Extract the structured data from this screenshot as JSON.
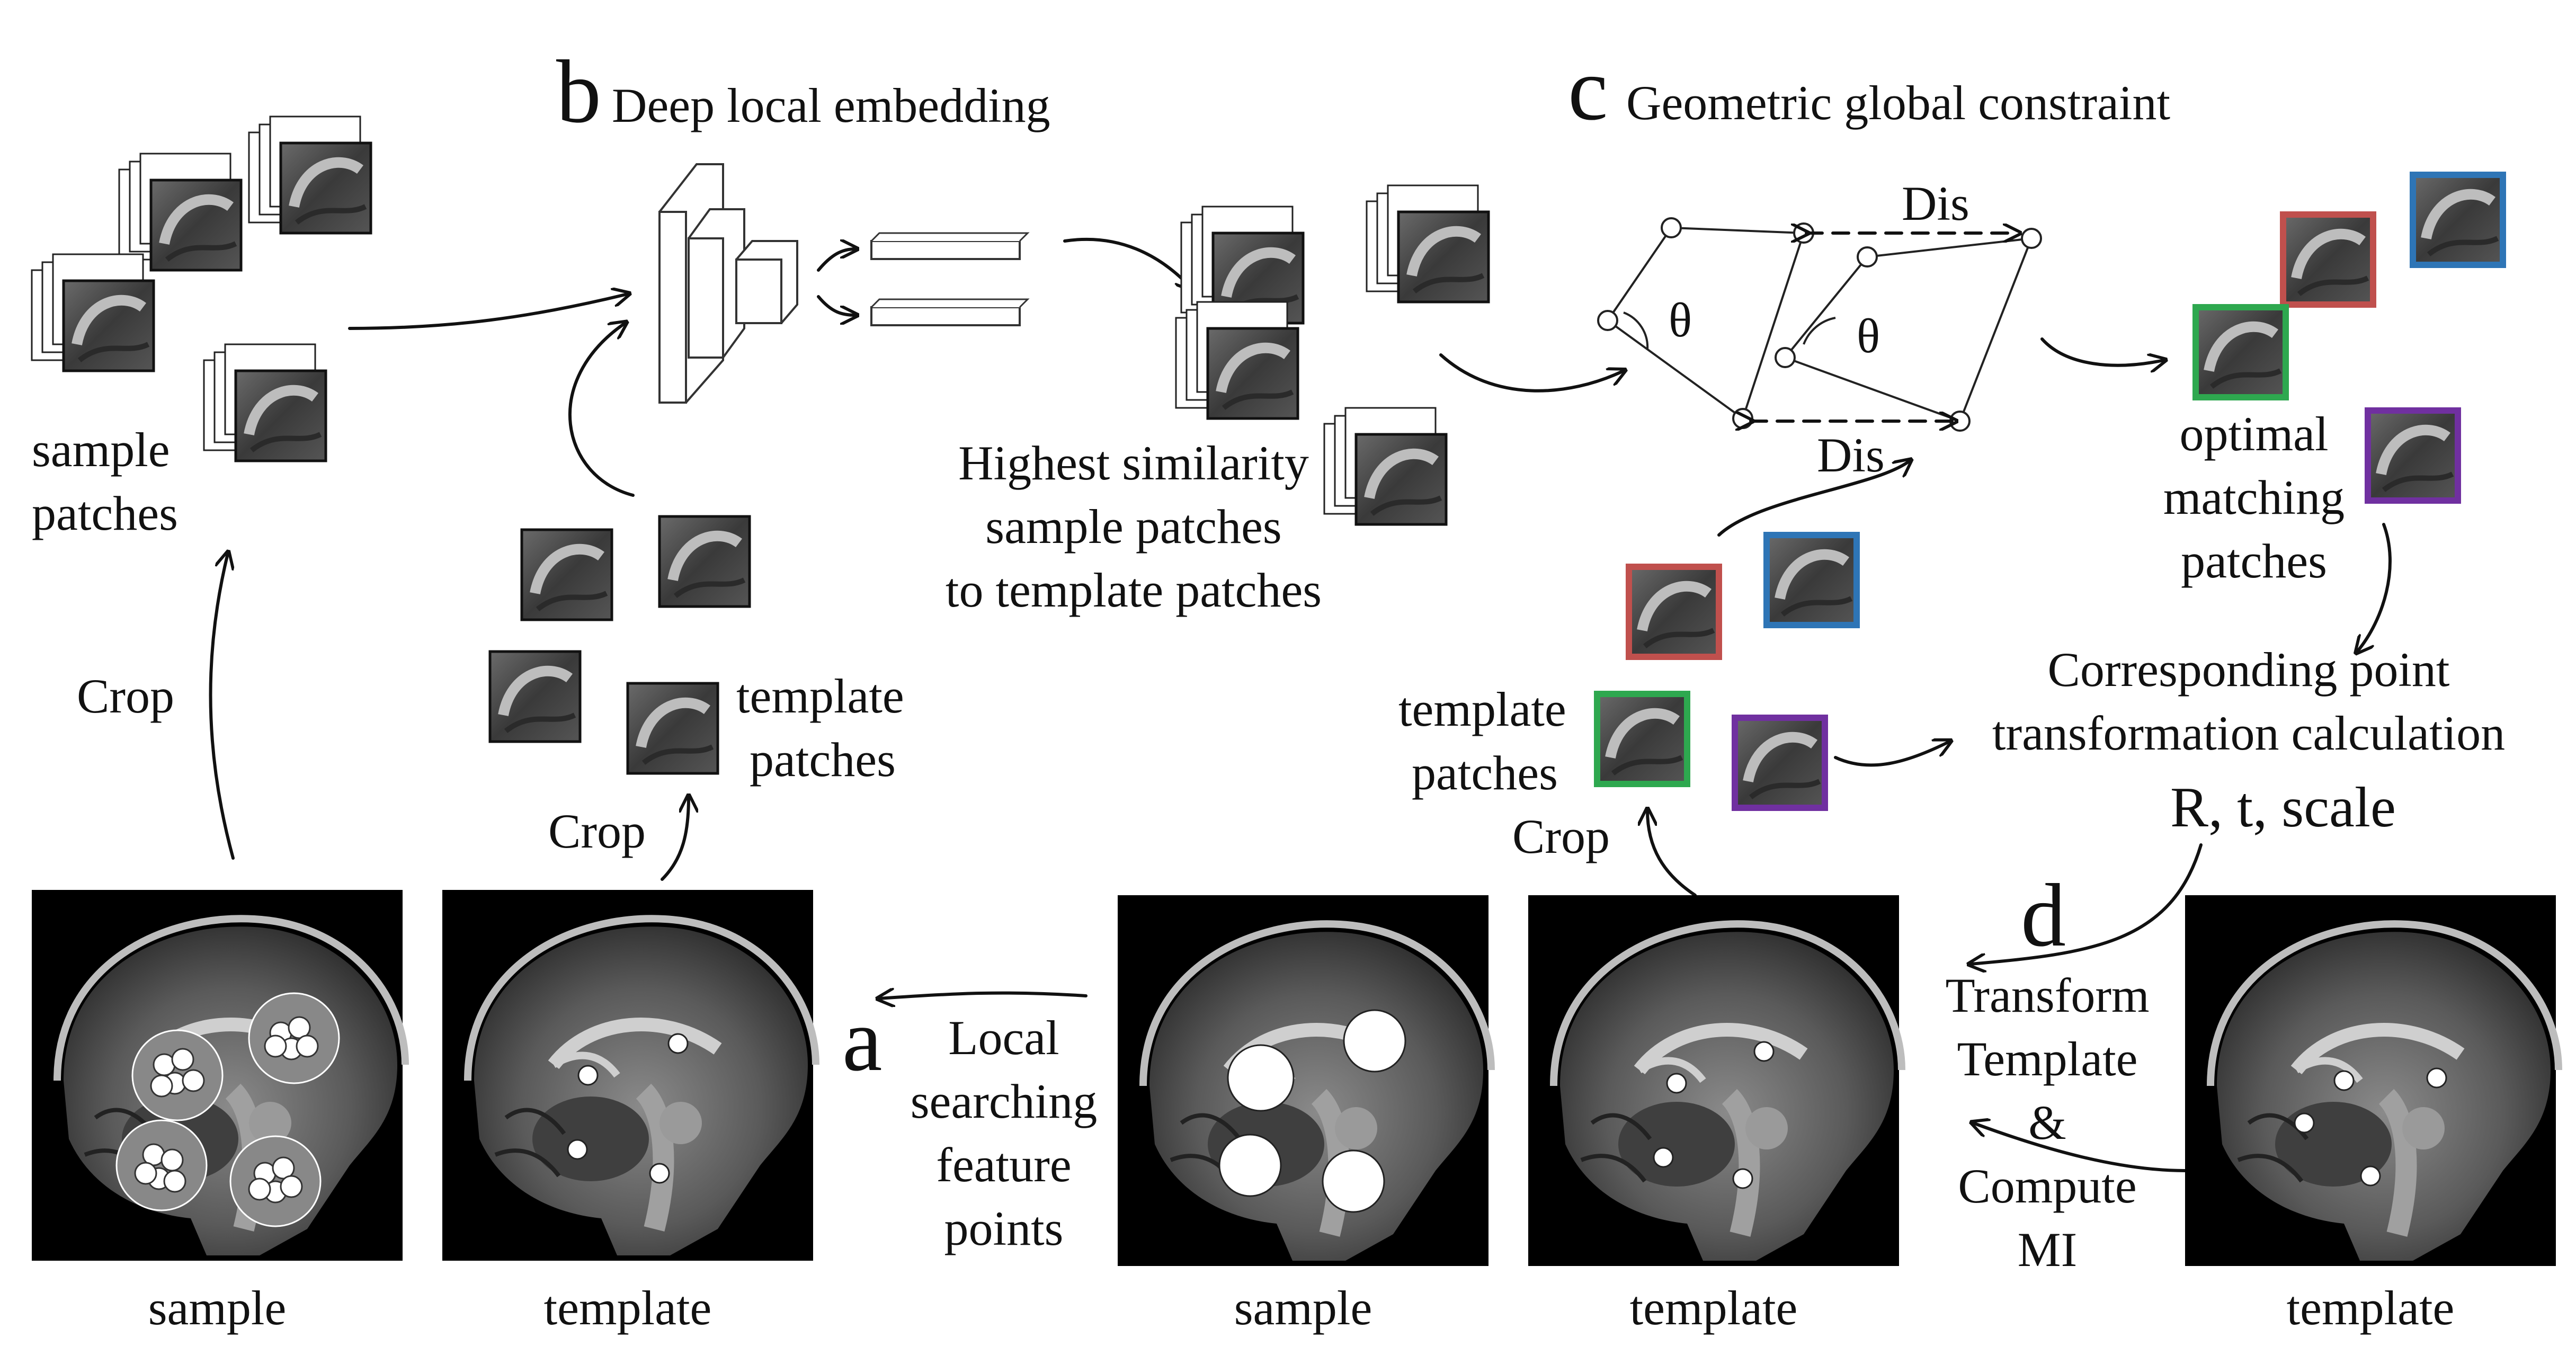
{
  "sections": {
    "a": {
      "letter": "a",
      "caption": [
        "Local",
        "searching",
        "feature",
        "points"
      ]
    },
    "b": {
      "letter": "b",
      "title": "Deep local embedding"
    },
    "c": {
      "letter": "c",
      "title": "Geometric global constraint"
    },
    "d": {
      "letter": "d",
      "caption": [
        "Transform",
        "Template",
        "&",
        "Compute",
        "MI"
      ]
    }
  },
  "labels": {
    "sample_patches": [
      "sample",
      "patches"
    ],
    "template_patches": [
      "template",
      "patches"
    ],
    "highest_similarity": [
      "Highest similarity",
      "sample patches",
      "to template patches"
    ],
    "optimal_matching": [
      "optimal",
      "matching",
      "patches"
    ],
    "corresponding": [
      "Corresponding point",
      "transformation calculation"
    ],
    "rts": "R, t, scale",
    "crop": "Crop",
    "dis": "Dis",
    "theta": "θ"
  },
  "image_captions": [
    "sample",
    "template",
    "sample",
    "template",
    "template"
  ],
  "colors": {
    "patch_red": "#c0504d",
    "patch_blue": "#2e75b6",
    "patch_green": "#2ea84f",
    "patch_purple": "#7030a0",
    "mri_background": "#000000"
  },
  "icons": [
    "brain-mri-image",
    "cnn-network-icon",
    "embedding-vector-icon",
    "geometry-graph-icon"
  ]
}
